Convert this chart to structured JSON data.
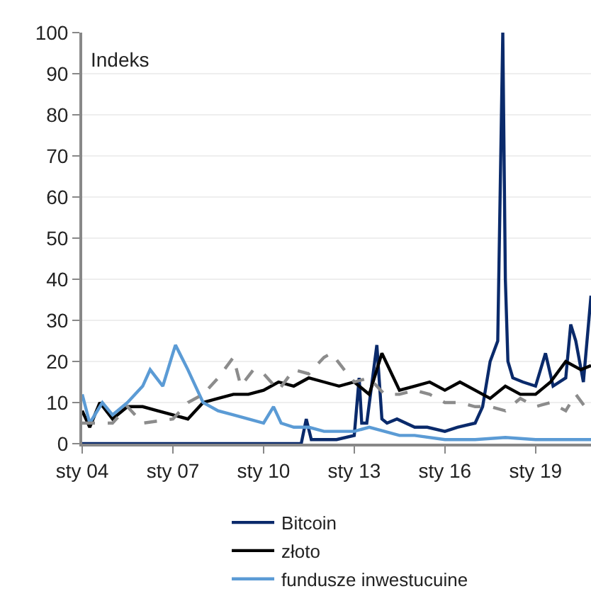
{
  "chart_data": {
    "type": "line",
    "annotations": [
      "Indeks"
    ],
    "xlim": [
      "2004-01",
      "2020-11"
    ],
    "ylim": [
      0,
      100
    ],
    "xticks": [
      {
        "value": "2004-01",
        "label": "sty 04"
      },
      {
        "value": "2007-01",
        "label": "sty 07"
      },
      {
        "value": "2010-01",
        "label": "sty 10"
      },
      {
        "value": "2013-01",
        "label": "sty 13"
      },
      {
        "value": "2016-01",
        "label": "sty 16"
      },
      {
        "value": "2019-01",
        "label": "sty 19"
      }
    ],
    "yticks": [
      0,
      10,
      20,
      30,
      40,
      50,
      60,
      70,
      80,
      90,
      100
    ],
    "grid": "y",
    "legend": "bottom",
    "marker": "none",
    "series": [
      {
        "name": "Bitcoin",
        "color": "#0a2a6b",
        "line_style": "solid",
        "x": [
          "2004-01",
          "2011-04",
          "2011-06",
          "2011-08",
          "2012-01",
          "2012-06",
          "2013-01",
          "2013-03",
          "2013-04",
          "2013-06",
          "2013-10",
          "2013-12",
          "2014-02",
          "2014-06",
          "2015-01",
          "2015-06",
          "2016-01",
          "2016-06",
          "2017-01",
          "2017-04",
          "2017-07",
          "2017-10",
          "2017-12",
          "2018-01",
          "2018-02",
          "2018-04",
          "2018-08",
          "2019-01",
          "2019-05",
          "2019-08",
          "2020-01",
          "2020-03",
          "2020-05",
          "2020-08",
          "2020-11"
        ],
        "values": [
          0,
          0,
          6,
          1,
          1,
          1,
          2,
          16,
          5,
          5,
          24,
          6,
          5,
          6,
          4,
          4,
          3,
          4,
          5,
          9,
          20,
          25,
          100,
          40,
          20,
          16,
          15,
          14,
          22,
          14,
          16,
          29,
          25,
          15,
          36
        ]
      },
      {
        "name": "złoto",
        "color": "#000000",
        "line_style": "solid",
        "x": [
          "2004-01",
          "2004-04",
          "2004-08",
          "2005-01",
          "2005-07",
          "2006-01",
          "2006-07",
          "2007-01",
          "2007-07",
          "2008-01",
          "2008-07",
          "2009-01",
          "2009-07",
          "2010-01",
          "2010-07",
          "2011-01",
          "2011-07",
          "2012-01",
          "2012-07",
          "2013-01",
          "2013-07",
          "2013-12",
          "2014-07",
          "2015-01",
          "2015-07",
          "2016-01",
          "2016-07",
          "2017-01",
          "2017-07",
          "2018-01",
          "2018-07",
          "2019-01",
          "2019-07",
          "2020-01",
          "2020-07",
          "2020-11"
        ],
        "values": [
          8,
          4,
          10,
          6,
          9,
          9,
          8,
          7,
          6,
          10,
          11,
          12,
          12,
          13,
          15,
          14,
          16,
          15,
          14,
          15,
          12,
          22,
          13,
          14,
          15,
          13,
          15,
          13,
          11,
          14,
          12,
          12,
          15,
          20,
          18,
          19
        ]
      },
      {
        "name": "fundusze inwestucuine",
        "color": "#5b9bd5",
        "line_style": "solid",
        "x": [
          "2004-01",
          "2004-04",
          "2004-09",
          "2005-01",
          "2005-07",
          "2006-01",
          "2006-04",
          "2006-09",
          "2007-01",
          "2007-02",
          "2007-07",
          "2007-10",
          "2008-01",
          "2008-07",
          "2009-01",
          "2009-07",
          "2010-01",
          "2010-05",
          "2010-08",
          "2011-01",
          "2011-07",
          "2012-01",
          "2013-01",
          "2013-07",
          "2014-01",
          "2014-07",
          "2015-01",
          "2016-01",
          "2017-01",
          "2018-01",
          "2019-01",
          "2020-01",
          "2020-11"
        ],
        "values": [
          12,
          5,
          10,
          7,
          10,
          14,
          18,
          14,
          22,
          24,
          18,
          14,
          10,
          8,
          7,
          6,
          5,
          9,
          5,
          4,
          4,
          3,
          3,
          4,
          3,
          2,
          2,
          1,
          1,
          1.5,
          1,
          1,
          1
        ]
      },
      {
        "color": "#8c8c8c",
        "line_style": "dashed",
        "x": [
          "2004-01",
          "2005-01",
          "2005-07",
          "2006-01",
          "2007-01",
          "2007-07",
          "2008-01",
          "2008-07",
          "2009-01",
          "2009-04",
          "2009-09",
          "2010-01",
          "2010-07",
          "2011-01",
          "2011-07",
          "2012-01",
          "2012-04",
          "2012-09",
          "2013-01",
          "2013-07",
          "2014-01",
          "2014-07",
          "2015-01",
          "2015-07",
          "2016-01",
          "2016-07",
          "2017-01",
          "2017-07",
          "2018-01",
          "2018-07",
          "2019-01",
          "2019-07",
          "2020-01",
          "2020-05",
          "2020-11"
        ],
        "values": [
          5,
          5,
          9,
          5,
          6,
          10,
          12,
          16,
          21,
          14,
          18,
          17,
          13,
          18,
          17,
          21,
          22,
          18,
          15,
          16,
          12,
          12,
          13,
          12,
          10,
          10,
          9,
          9,
          8,
          11,
          9,
          10,
          8,
          12,
          7
        ]
      }
    ]
  }
}
